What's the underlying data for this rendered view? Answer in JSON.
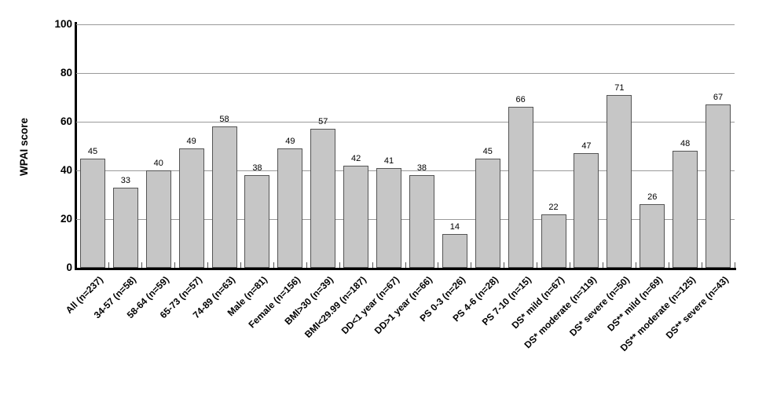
{
  "chart_data": {
    "type": "bar",
    "title": "",
    "xlabel": "",
    "ylabel": "WPAI score",
    "ylim": [
      0,
      100
    ],
    "yticks": [
      0,
      20,
      40,
      60,
      80,
      100
    ],
    "grid": "horizontal gridlines at 20-unit intervals",
    "legend_position": "none",
    "categories": [
      "All (n=237)",
      "34-57 (n=58)",
      "58-64 (n=59)",
      "65-73 (n=57)",
      "74-89 (n=63)",
      "Male (n=81)",
      "Female (n=156)",
      "BMI>30 (n=39)",
      "BMI<29.99 (n=187)",
      "DD<1 year (n=67)",
      "DD>1 year (n=66)",
      "PS 0-3 (n=26)",
      "PS 4-6 (n=28)",
      "PS 7-10 (n=15)",
      "DS* mild (n=67)",
      "DS* moderate (n=119)",
      "DS* severe (n=50)",
      "DS** mild (n=69)",
      "DS** moderate (n=125)",
      "DS** severe (n=43)"
    ],
    "values": [
      45,
      33,
      40,
      49,
      58,
      38,
      49,
      57,
      42,
      41,
      38,
      14,
      45,
      66,
      22,
      47,
      71,
      26,
      48,
      67
    ],
    "colors": {
      "bar_fill": "#c6c6c6",
      "bar_border": "#555555",
      "gridline": "#9a9a9a",
      "axis": "#000000",
      "text": "#000000",
      "background": "#ffffff"
    }
  }
}
